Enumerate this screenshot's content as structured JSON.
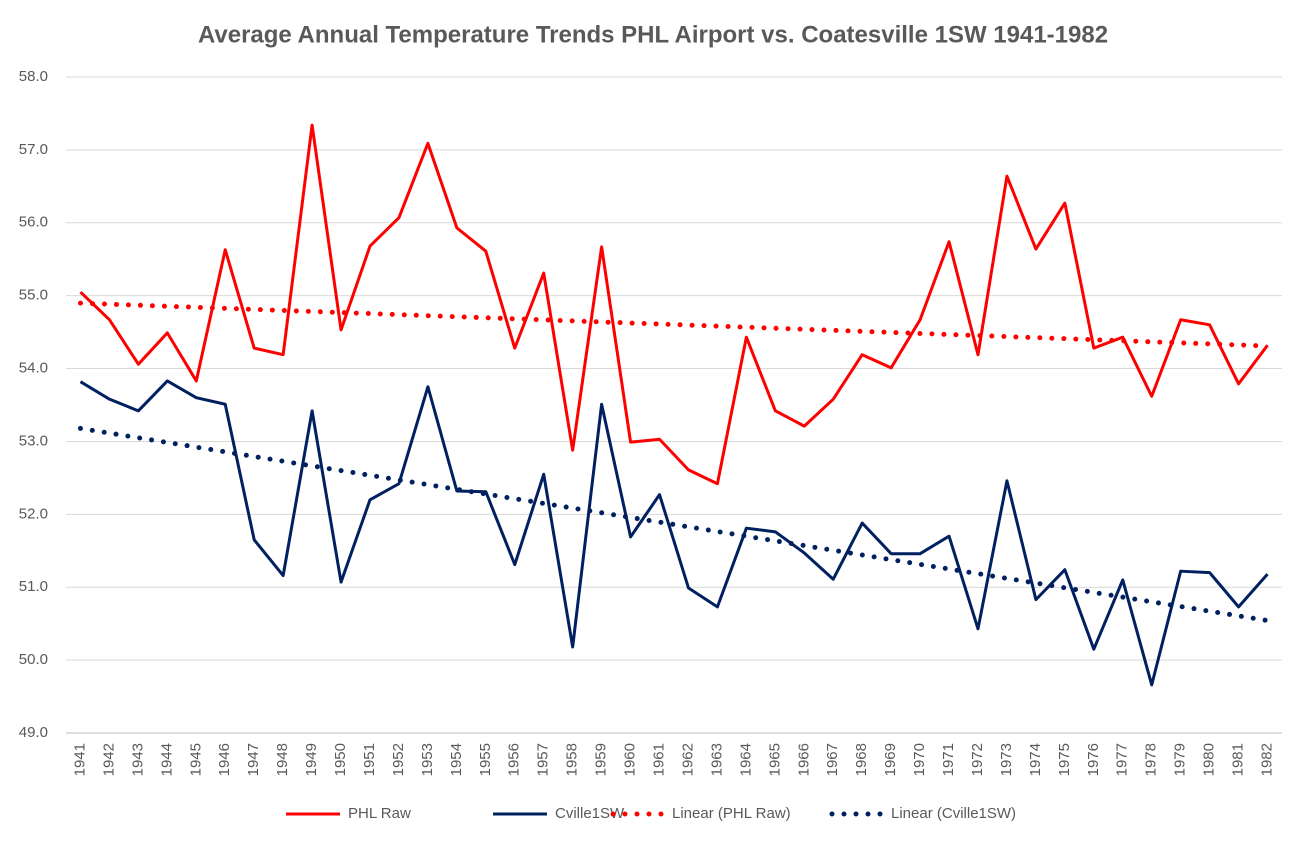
{
  "chart_data": {
    "type": "line",
    "title": "Average Annual Temperature Trends PHL Airport vs. Coatesville 1SW 1941-1982",
    "categories": [
      "1941",
      "1942",
      "1943",
      "1944",
      "1945",
      "1946",
      "1947",
      "1948",
      "1949",
      "1950",
      "1951",
      "1952",
      "1953",
      "1954",
      "1955",
      "1956",
      "1957",
      "1958",
      "1959",
      "1960",
      "1961",
      "1962",
      "1963",
      "1964",
      "1965",
      "1966",
      "1967",
      "1968",
      "1969",
      "1970",
      "1971",
      "1972",
      "1973",
      "1974",
      "1975",
      "1976",
      "1977",
      "1978",
      "1979",
      "1980",
      "1981",
      "1982"
    ],
    "series": [
      {
        "name": "PHL Raw",
        "color": "#ff0000",
        "values": [
          55.05,
          54.67,
          54.06,
          54.49,
          53.83,
          55.63,
          54.28,
          54.19,
          57.34,
          54.53,
          55.68,
          56.07,
          57.09,
          55.93,
          55.61,
          54.28,
          55.31,
          52.88,
          55.67,
          52.99,
          53.03,
          52.61,
          52.42,
          54.43,
          53.42,
          53.21,
          53.58,
          54.19,
          54.01,
          54.67,
          55.74,
          54.19,
          56.64,
          55.64,
          56.27,
          54.28,
          54.43,
          53.62,
          54.67,
          54.6,
          53.79,
          54.32
        ],
        "trendline": {
          "type": "linear",
          "name": "Linear (PHL Raw)"
        }
      },
      {
        "name": "Cville1SW",
        "color": "#002060",
        "values": [
          53.82,
          53.58,
          53.42,
          53.83,
          53.6,
          53.51,
          51.65,
          51.16,
          53.42,
          51.07,
          52.2,
          52.42,
          53.75,
          52.32,
          52.31,
          51.31,
          52.55,
          50.18,
          53.51,
          51.69,
          52.27,
          50.99,
          50.73,
          51.81,
          51.76,
          51.47,
          51.11,
          51.88,
          51.46,
          51.46,
          51.7,
          50.43,
          52.46,
          50.83,
          51.24,
          50.15,
          51.1,
          49.66,
          51.22,
          51.2,
          50.73,
          51.18
        ],
        "trendline": {
          "type": "linear",
          "name": "Linear (Cville1SW)"
        }
      }
    ],
    "ylim": [
      49,
      58
    ],
    "yticks": [
      {
        "value": 49,
        "label": "49.0"
      },
      {
        "value": 50,
        "label": "50.0"
      },
      {
        "value": 51,
        "label": "51.0"
      },
      {
        "value": 52,
        "label": "52.0"
      },
      {
        "value": 53,
        "label": "53.0"
      },
      {
        "value": 54,
        "label": "54.0"
      },
      {
        "value": 55,
        "label": "55.0"
      },
      {
        "value": 56,
        "label": "56.0"
      },
      {
        "value": 57,
        "label": "57.0"
      },
      {
        "value": 58,
        "label": "58.0"
      }
    ],
    "grid": true,
    "legend": "bottom"
  }
}
